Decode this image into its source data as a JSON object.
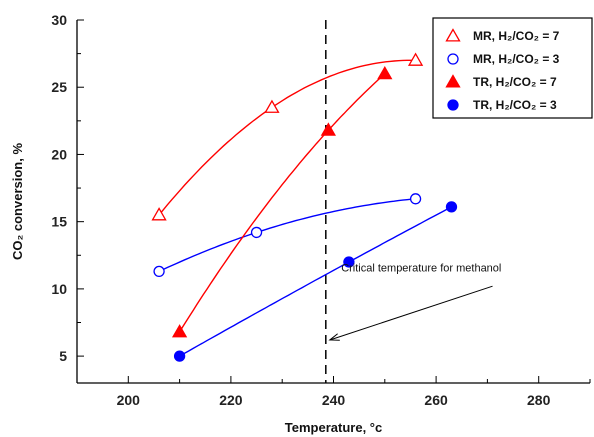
{
  "chart_data": {
    "type": "scatter",
    "xlabel": "Temperature, °c",
    "ylabel": "CO₂ conversion, %",
    "xlim": [
      190,
      290
    ],
    "ylim": [
      3,
      30
    ],
    "x_ticks": [
      200,
      220,
      240,
      260,
      280
    ],
    "y_ticks": [
      5,
      10,
      15,
      20,
      25,
      30
    ],
    "grid": false,
    "legend_position": "top-right",
    "vertical_line": {
      "x": 238.5,
      "style": "dashed",
      "color": "#000000"
    },
    "annotation": {
      "text": "Critical temperature for methanol",
      "points_to_x": 238.5,
      "points_to_y": 6.2
    },
    "series": [
      {
        "name": "MR, H₂/CO₂ = 7",
        "color": "#ff0000",
        "marker": "triangle-open",
        "x": [
          206,
          228,
          256
        ],
        "y": [
          15.5,
          23.5,
          27.0
        ]
      },
      {
        "name": "MR, H₂/CO₂ = 3",
        "color": "#0000ff",
        "marker": "circle-open",
        "x": [
          206,
          225,
          256
        ],
        "y": [
          11.3,
          14.2,
          16.7
        ]
      },
      {
        "name": "TR, H₂/CO₂ = 7",
        "color": "#ff0000",
        "marker": "triangle-filled",
        "x": [
          210,
          239,
          250
        ],
        "y": [
          6.8,
          21.8,
          26.0
        ]
      },
      {
        "name": "TR, H₂/CO₂ = 3",
        "color": "#0000ff",
        "marker": "circle-filled",
        "x": [
          210,
          243,
          263
        ],
        "y": [
          5.0,
          12.0,
          16.1
        ]
      }
    ]
  }
}
